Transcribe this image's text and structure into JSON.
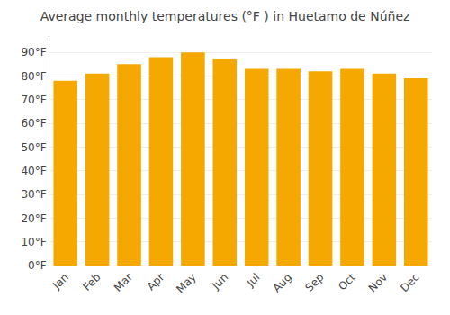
{
  "chart_data": {
    "type": "bar",
    "title": "Average monthly temperatures (°F ) in Huetamo de Núñez",
    "categories": [
      "Jan",
      "Feb",
      "Mar",
      "Apr",
      "May",
      "Jun",
      "Jul",
      "Aug",
      "Sep",
      "Oct",
      "Nov",
      "Dec"
    ],
    "values": [
      78,
      81,
      85,
      88,
      90,
      87,
      83,
      83,
      82,
      83,
      81,
      79
    ],
    "color": "#F5A800",
    "ylim": [
      0,
      95
    ],
    "yticks": [
      {
        "value": 0,
        "label": "0°F"
      },
      {
        "value": 10,
        "label": "10°F"
      },
      {
        "value": 20,
        "label": "20°F"
      },
      {
        "value": 30,
        "label": "30°F"
      },
      {
        "value": 40,
        "label": "40°F"
      },
      {
        "value": 50,
        "label": "50°F"
      },
      {
        "value": 60,
        "label": "60°F"
      },
      {
        "value": 70,
        "label": "70°F"
      },
      {
        "value": 80,
        "label": "80°F"
      },
      {
        "value": 90,
        "label": "90°F"
      }
    ],
    "grid": true
  }
}
